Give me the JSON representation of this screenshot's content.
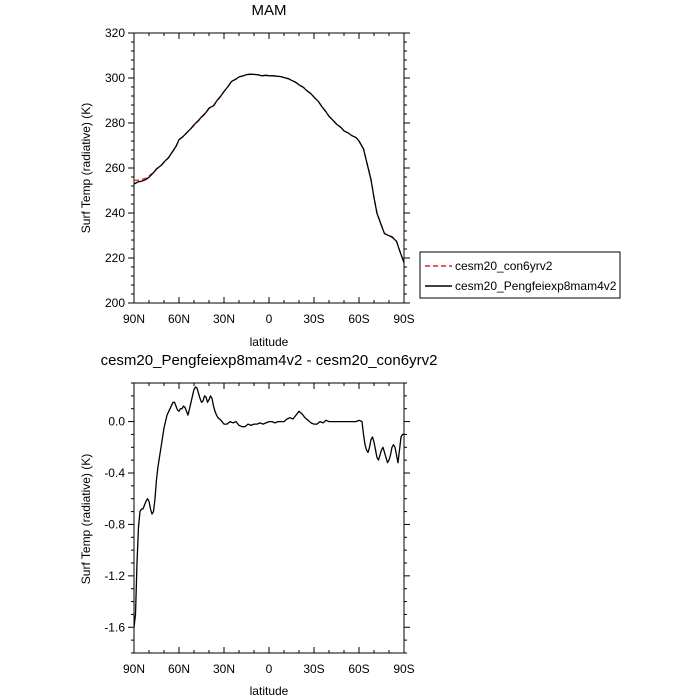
{
  "chart_data": [
    {
      "type": "line",
      "title": "MAM",
      "xlabel": "latitude",
      "ylabel": "Surf Temp (radiative) (K)",
      "xlim": [
        90,
        -90
      ],
      "ylim": [
        200,
        320
      ],
      "x_ticks": [
        90,
        60,
        30,
        0,
        -30,
        -60,
        -90
      ],
      "x_tick_labels": [
        "90N",
        "60N",
        "30N",
        "0",
        "30S",
        "60S",
        "90S"
      ],
      "y_ticks": [
        200,
        220,
        240,
        260,
        280,
        300,
        320
      ],
      "y_tick_labels": [
        "200",
        "220",
        "240",
        "260",
        "280",
        "300",
        "320"
      ],
      "grid": false,
      "legend_position": "right",
      "series": [
        {
          "name": "cesm20_con6yrv2",
          "color": "#d62728",
          "dash": "dashed",
          "x": [
            90,
            87,
            85,
            82,
            80,
            77,
            75,
            72,
            70,
            67,
            65,
            62,
            60,
            57,
            55,
            52,
            50,
            47,
            45,
            42,
            40,
            37,
            35,
            32,
            30,
            27,
            25,
            22,
            20,
            17,
            15,
            12,
            10,
            7,
            5,
            2,
            0,
            -3,
            -5,
            -8,
            -10,
            -13,
            -15,
            -18,
            -20,
            -23,
            -25,
            -28,
            -30,
            -33,
            -35,
            -38,
            -40,
            -43,
            -45,
            -48,
            -50,
            -53,
            -55,
            -58,
            -60,
            -63,
            -65,
            -68,
            -70,
            -72,
            -75,
            -77,
            -80,
            -82,
            -85,
            -87,
            -90
          ],
          "values": [
            254.5,
            254.6,
            254.8,
            255.5,
            256.5,
            258.0,
            259.5,
            261.0,
            262.5,
            264.5,
            266.5,
            269.5,
            272.5,
            274.0,
            275.5,
            277.5,
            279.0,
            281.0,
            282.5,
            284.5,
            286.5,
            287.5,
            289.5,
            292.0,
            294.0,
            296.5,
            298.5,
            299.5,
            300.5,
            301.0,
            301.5,
            301.7,
            301.6,
            301.4,
            301.0,
            301.2,
            301.0,
            301.0,
            300.8,
            300.6,
            300.2,
            299.7,
            299.0,
            298.0,
            297.0,
            295.8,
            294.5,
            293.0,
            291.5,
            289.5,
            287.5,
            285.0,
            283.0,
            281.0,
            279.5,
            278.0,
            276.5,
            275.5,
            274.5,
            273.5,
            272.0,
            268.5,
            263.0,
            255.0,
            247.0,
            240.0,
            234.5,
            231.0,
            230.0,
            229.5,
            227.5,
            223.5,
            218.0
          ]
        },
        {
          "name": "cesm20_Pengfeiexp8mam4v2",
          "color": "#000000",
          "dash": "solid",
          "x": [
            90,
            87,
            85,
            82,
            80,
            77,
            75,
            72,
            70,
            67,
            65,
            62,
            60,
            57,
            55,
            52,
            50,
            47,
            45,
            42,
            40,
            37,
            35,
            32,
            30,
            27,
            25,
            22,
            20,
            17,
            15,
            12,
            10,
            7,
            5,
            2,
            0,
            -3,
            -5,
            -8,
            -10,
            -13,
            -15,
            -18,
            -20,
            -23,
            -25,
            -28,
            -30,
            -33,
            -35,
            -38,
            -40,
            -43,
            -45,
            -48,
            -50,
            -53,
            -55,
            -58,
            -60,
            -63,
            -65,
            -68,
            -70,
            -72,
            -75,
            -77,
            -80,
            -82,
            -85,
            -87,
            -90
          ],
          "values": [
            252.9,
            253.9,
            254.1,
            254.9,
            255.9,
            257.9,
            259.6,
            261.1,
            262.6,
            264.6,
            266.6,
            269.6,
            272.6,
            274.2,
            275.6,
            277.6,
            279.2,
            281.2,
            282.7,
            284.7,
            286.6,
            287.7,
            289.7,
            292.1,
            294.0,
            296.5,
            298.5,
            299.5,
            300.5,
            301.0,
            301.5,
            301.7,
            301.6,
            301.4,
            301.0,
            301.2,
            301.0,
            301.0,
            300.8,
            300.6,
            300.2,
            299.7,
            299.0,
            298.0,
            297.0,
            295.8,
            294.5,
            293.0,
            291.5,
            289.5,
            287.5,
            285.0,
            283.0,
            281.0,
            279.5,
            278.0,
            276.5,
            275.5,
            274.5,
            273.5,
            272.0,
            268.5,
            263.0,
            254.8,
            246.8,
            239.8,
            234.3,
            230.8,
            229.9,
            229.3,
            227.4,
            223.4,
            217.9
          ]
        }
      ]
    },
    {
      "type": "line",
      "title": "cesm20_Pengfeiexp8mam4v2 - cesm20_con6yrv2",
      "xlabel": "latitude",
      "ylabel": "Surf Temp (radiative) (K)",
      "xlim": [
        90,
        -90
      ],
      "ylim": [
        -1.8,
        0.3
      ],
      "x_ticks": [
        90,
        60,
        30,
        0,
        -30,
        -60,
        -90
      ],
      "x_tick_labels": [
        "90N",
        "60N",
        "30N",
        "0",
        "30S",
        "60S",
        "90S"
      ],
      "y_ticks": [
        -1.6,
        -1.2,
        -0.8,
        -0.4,
        0.0
      ],
      "y_tick_labels": [
        "-1.6",
        "-1.2",
        "-0.8",
        "-0.4",
        "0.0"
      ],
      "grid": false,
      "series": [
        {
          "color": "#000000",
          "x": [
            90,
            89,
            88,
            87,
            86,
            85,
            84,
            83,
            82,
            81,
            80,
            79,
            78,
            77,
            76,
            75,
            74,
            72,
            70,
            68,
            66,
            64,
            63,
            62,
            61,
            60,
            59,
            58,
            57,
            56,
            55,
            54,
            52,
            50,
            49,
            48,
            47,
            46,
            45,
            44,
            43,
            42,
            41,
            40,
            39,
            38,
            37,
            36,
            35,
            34,
            33,
            32,
            30,
            28,
            26,
            24,
            22,
            20,
            18,
            16,
            14,
            12,
            10,
            8,
            6,
            4,
            2,
            0,
            -2,
            -4,
            -6,
            -8,
            -10,
            -12,
            -14,
            -16,
            -18,
            -20,
            -22,
            -24,
            -26,
            -28,
            -30,
            -32,
            -34,
            -36,
            -38,
            -40,
            -42,
            -44,
            -46,
            -48,
            -50,
            -52,
            -54,
            -56,
            -58,
            -60,
            -62,
            -63,
            -64,
            -65,
            -66,
            -67,
            -68,
            -69,
            -70,
            -71,
            -72,
            -73,
            -74,
            -75,
            -76,
            -77,
            -78,
            -79,
            -80,
            -81,
            -82,
            -83,
            -84,
            -85,
            -86,
            -87,
            -88,
            -89,
            -90
          ],
          "values": [
            -1.6,
            -1.5,
            -1.1,
            -0.82,
            -0.7,
            -0.68,
            -0.68,
            -0.65,
            -0.62,
            -0.6,
            -0.62,
            -0.68,
            -0.72,
            -0.7,
            -0.6,
            -0.45,
            -0.35,
            -0.2,
            -0.05,
            0.05,
            0.1,
            0.15,
            0.15,
            0.12,
            0.09,
            0.08,
            0.1,
            0.1,
            0.12,
            0.11,
            0.08,
            0.05,
            0.15,
            0.25,
            0.27,
            0.26,
            0.22,
            0.18,
            0.15,
            0.16,
            0.2,
            0.19,
            0.15,
            0.17,
            0.2,
            0.18,
            0.12,
            0.08,
            0.05,
            0.03,
            0.02,
            0.01,
            -0.02,
            -0.02,
            0.0,
            -0.01,
            0.0,
            -0.03,
            -0.04,
            -0.04,
            -0.02,
            -0.03,
            -0.02,
            -0.02,
            -0.01,
            -0.02,
            -0.01,
            0.0,
            0.0,
            -0.01,
            0.0,
            0.0,
            0.0,
            0.02,
            0.03,
            0.02,
            0.05,
            0.08,
            0.06,
            0.03,
            0.01,
            -0.01,
            -0.02,
            -0.02,
            0.0,
            -0.01,
            0.01,
            0.0,
            0.0,
            0.0,
            0.0,
            0.0,
            0.0,
            0.0,
            0.0,
            0.0,
            0.0,
            0.01,
            0.0,
            -0.1,
            -0.18,
            -0.22,
            -0.24,
            -0.2,
            -0.14,
            -0.12,
            -0.16,
            -0.22,
            -0.28,
            -0.3,
            -0.26,
            -0.22,
            -0.2,
            -0.24,
            -0.28,
            -0.32,
            -0.3,
            -0.26,
            -0.2,
            -0.18,
            -0.2,
            -0.26,
            -0.32,
            -0.22,
            -0.12,
            -0.1,
            -0.1
          ]
        }
      ]
    }
  ]
}
